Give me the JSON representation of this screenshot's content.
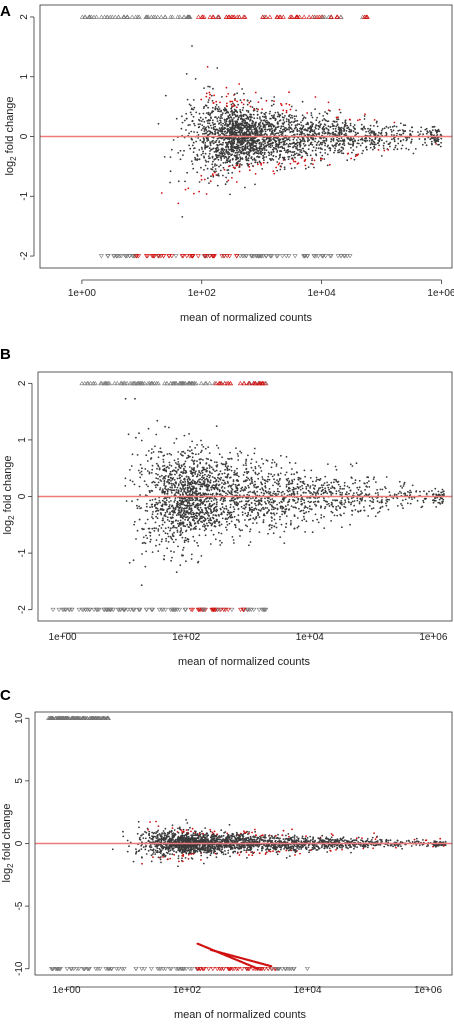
{
  "colors": {
    "points": "#3a3a3a",
    "significant": "#d01010",
    "reference_line": "#f07a7a"
  },
  "chart_data": [
    {
      "type": "scatter",
      "panel_label": "A",
      "xlabel": "mean of normalized counts",
      "ylabel_main": "log",
      "ylabel_sub": "2",
      "ylabel_rest": " fold change",
      "x_scale": "log",
      "xlim": [
        0.2,
        1500000
      ],
      "ylim": [
        -2.2,
        2.2
      ],
      "x_ticks": [
        1,
        100,
        10000,
        1000000
      ],
      "x_tick_labels": [
        "1e+00",
        "1e+02",
        "1e+04",
        "1e+06"
      ],
      "y_ticks": [
        -2,
        -1,
        0,
        1,
        2
      ],
      "y_tick_labels": [
        "-2",
        "-1",
        "0",
        "1",
        "2"
      ],
      "reference_line_y": 0,
      "cloud": {
        "x_peak": 250,
        "x_min": 5,
        "x_max": 1000000,
        "spread_at_peak": 0.55,
        "spread_at_max": 0.12
      },
      "significant_fraction_upper": 0.45,
      "clipped_rows": [
        {
          "y": 2,
          "x_from": 1,
          "x_to": 60000,
          "highlight_from": 80,
          "highlight_to": 60000
        },
        {
          "y": -2,
          "x_from": 2,
          "x_to": 30000,
          "highlight_from": 8,
          "highlight_to": 400
        }
      ]
    },
    {
      "type": "scatter",
      "panel_label": "B",
      "xlabel": "mean of normalized counts",
      "ylabel_main": "log",
      "ylabel_sub": "2",
      "ylabel_rest": " fold change",
      "x_scale": "log",
      "xlim": [
        0.4,
        2000000
      ],
      "ylim": [
        -2.2,
        2.2
      ],
      "x_ticks": [
        1,
        100,
        10000,
        1000000
      ],
      "x_tick_labels": [
        "1e+00",
        "1e+02",
        "1e+04",
        "1e+06"
      ],
      "y_ticks": [
        -2,
        -1,
        0,
        1,
        2
      ],
      "y_tick_labels": [
        "-2",
        "-1",
        "0",
        "1",
        "2"
      ],
      "reference_line_y": 0,
      "cloud": {
        "x_peak": 80,
        "x_min": 10,
        "x_max": 1500000,
        "spread_at_peak": 0.75,
        "spread_at_max": 0.12
      },
      "significant_fraction_upper": 0.0,
      "clipped_rows": [
        {
          "y": 2,
          "x_from": 2,
          "x_to": 2000,
          "highlight_from": 300,
          "highlight_to": 2000
        },
        {
          "y": -2,
          "x_from": 0.6,
          "x_to": 2000,
          "highlight_from": 100,
          "highlight_to": 1000
        }
      ]
    },
    {
      "type": "scatter",
      "panel_label": "C",
      "xlabel": "mean of normalized counts",
      "ylabel_main": "log",
      "ylabel_sub": "2",
      "ylabel_rest": " fold change",
      "x_scale": "log",
      "xlim": [
        0.3,
        2500000
      ],
      "ylim": [
        -10.5,
        10.5
      ],
      "x_ticks": [
        1,
        100,
        10000,
        1000000
      ],
      "x_tick_labels": [
        "1e+00",
        "1e+02",
        "1e+04",
        "1e+06"
      ],
      "y_ticks": [
        -10,
        -5,
        0,
        5,
        10
      ],
      "y_tick_labels": [
        "-10",
        "-5",
        "0",
        "5",
        "10"
      ],
      "reference_line_y": 0,
      "cloud": {
        "x_peak": 80,
        "x_min": 3,
        "x_max": 2000000,
        "spread_at_peak": 0.9,
        "spread_at_max": 0.2
      },
      "significant_fraction_upper": 0.35,
      "clipped_rows": [
        {
          "y": 10,
          "x_from": 0.5,
          "x_to": 5,
          "highlight_from": 0,
          "highlight_to": 0
        },
        {
          "y": -10,
          "x_from": 0.5,
          "x_to": 10000,
          "highlight_from": 150,
          "highlight_to": 3000
        }
      ],
      "diagonal_streaks": [
        {
          "x_from": 150,
          "x_to": 1500,
          "y_from": -8,
          "y_to": -10
        },
        {
          "x_from": 250,
          "x_to": 2500,
          "y_from": -8.5,
          "y_to": -9.8
        }
      ]
    }
  ]
}
